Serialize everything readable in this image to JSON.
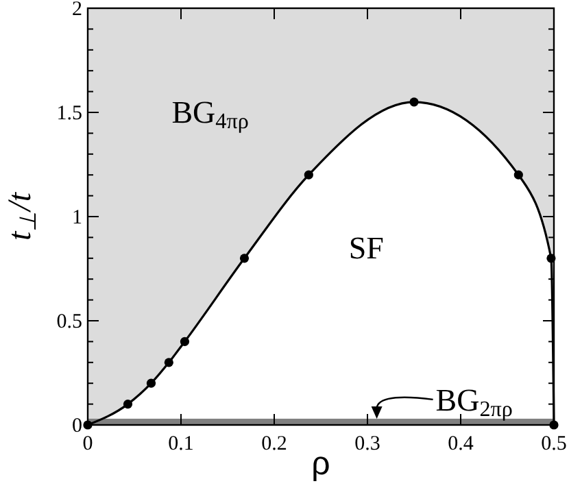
{
  "chart_data": {
    "type": "line",
    "xlabel": "ρ",
    "ylabel": "t$_{⊥}$/t",
    "xlim": [
      0,
      0.5
    ],
    "ylim": [
      0,
      2
    ],
    "xticks": [
      0,
      0.1,
      0.2,
      0.3,
      0.4,
      0.5
    ],
    "yticks": [
      0,
      {
        "value": 0.1,
        "label": null
      },
      {
        "value": 0.2,
        "label": null
      },
      {
        "value": 0.3,
        "label": null
      },
      {
        "value": 0.4,
        "label": null
      },
      0.5,
      {
        "value": 0.6,
        "label": null
      },
      {
        "value": 0.7,
        "label": null
      },
      {
        "value": 0.8,
        "label": null
      },
      {
        "value": 0.9,
        "label": null
      },
      1,
      {
        "value": 1.1,
        "label": null
      },
      {
        "value": 1.2,
        "label": null
      },
      {
        "value": 1.3,
        "label": null
      },
      {
        "value": 1.4,
        "label": null
      },
      1.5,
      {
        "value": 1.6,
        "label": null
      },
      {
        "value": 1.7,
        "label": null
      },
      {
        "value": 1.8,
        "label": null
      },
      {
        "value": 1.9,
        "label": null
      },
      2
    ],
    "grid": false,
    "bands": [
      {
        "axis": "y",
        "from": 0,
        "to": 2,
        "color": "#dcdcdc"
      },
      {
        "axis": "y",
        "from": 0,
        "to": 0.03,
        "color": "#808080"
      }
    ],
    "series": [
      {
        "color": "#000000",
        "x": [
          0,
          0.043,
          0.068,
          0.087,
          0.104,
          0.168,
          0.237,
          0.35,
          0.462,
          0.497,
          0.5
        ],
        "values": [
          0,
          0.1,
          0.2,
          0.3,
          0.4,
          0.8,
          1.2,
          1.55,
          1.2,
          0.8,
          0
        ],
        "marker": "circle",
        "line_style": "solid"
      }
    ],
    "annotations": [
      "BG$_{4πρ}$",
      "SF",
      {
        "text": "BG$_{2πρ}$",
        "x": 0.31,
        "y": 0.03
      }
    ]
  }
}
